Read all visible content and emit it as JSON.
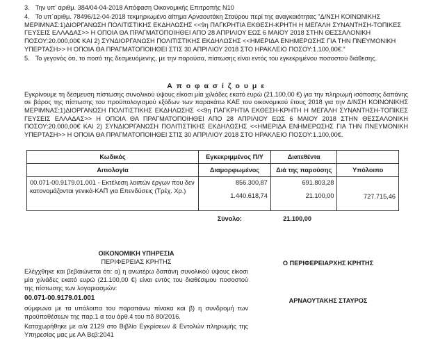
{
  "preamble_items": [
    {
      "num": "3.",
      "text": "Την υπ' αριθμ. 384/04-04-2018 Απόφαση Οικονομικής Επιτροπής Ν10"
    },
    {
      "num": "4.",
      "text": "Το υπ΄αριθμ. 78496/12-04-2018 τεκμηριωμένο αίτημα Αρναουτάκη Σταύρου περί της αναγκαιότητας \"Δ/ΝΣΗ ΚΟΙΝΩΝΙΚΗΣ ΜΕΡΙΜΝΑΣ:1)ΔΙΟΡΓΑΝΩΣΗ ΠΟΛΙΤΙΣΤΙΚΗΣ ΕΚΔΗΛΩΣΗΣ <<9η ΠΑΓΚΡΗΤΙΑ ΕΚΘΕΣΗ-ΚΡΗΤΗ Η ΜΕΓΑΛΗ ΣΥΝΑΝΤΗΣΗ-ΤΟΠΙΚΕΣ ΓΕΥΣΕΙΣ ΕΛΛΑΔΑΣ>> Η ΟΠΟΙΑ ΘΑ ΠΡΑΓΜΑΤΟΠΟΙΗΘΕΙ ΑΠΟ 28 ΑΠΡΙΛΙΟΥ ΕΩΣ 6 ΜΑΙΟΥ 2018 ΣΤΗΝ ΘΕΣΣΑΛΟΝΙΚΗ ΠΟΣΟΥ:20.000,00€ ΚΑΙ 2) ΣΥΝΔΙΟΡΓΑΝΩΣΗ ΠΟΛΙΤΙΣΤΙΚΗΣ ΕΚΔΗΛΩΣΗΣ <<ΗΜΕΡΙΔΑ ΕΝΗΜΕΡΩΣΗΣ ΓΙΑ ΤΗΝ ΠΝΕΥΜΟΝΙΚΗ ΥΠΕΡΤΑΣΗ>> Η ΟΠΟΙΑ ΘΑ ΠΡΑΓΜΑΤΟΠΟΙΗΘΕΙ ΣΤΙΣ 30 ΑΠΡΙΛΙΟΥ 2018 ΣΤΟ ΗΡΑΚΛΕΙΟ ΠΟΣΟΥ:1.100,00€.\""
    },
    {
      "num": "5.",
      "text": "Το γεγονός ότι, το ποσό της δεσμευόμενης, με την παρούσα, πίστωσης είναι εντός του εγκεκριμένου ποσοστού διάθεσης."
    }
  ],
  "decision": {
    "heading": "Α π ο φ α σ ί ζ ο υ μ ε",
    "paragraph": "Εγκρίνουμε τη δέσμευση πίστωσης συνολικού ύψους είκοσι μία χιλιάδες εκατό ευρώ (21.100,00 €) για την πληρωμή ισόποσης δαπάνης σε βάρος της πίστωσης του προϋπολογισμού εξόδων των παρακάτω ΚΑΕ του οικονομικού έτους 2018 για την Δ/ΝΣΗ ΚΟΙΝΩΝΙΚΗΣ ΜΕΡΙΜΝΑΣ:1)ΔΙΟΡΓΑΝΩΣΗ ΠΟΛΙΤΙΣΤΙΚΗΣ ΕΚΔΗΛΩΣΗΣ <<9η ΠΑΓΚΡΗΤΙΑ ΕΚΘΕΣΗ-ΚΡΗΤΗ Η ΜΕΓΑΛΗ ΣΥΝΑΝΤΗΣΗ-ΤΟΠΙΚΕΣ ΓΕΥΣΕΙΣ ΕΛΛΑΔΑΣ>> Η ΟΠΟΙΑ ΘΑ ΠΡΑΓΜΑΤΟΠΟΙΗΘΕΙ ΑΠΟ 28 ΑΠΡΙΛΙΟΥ ΕΩΣ 6 ΜΑΙΟΥ 2018 ΣΤΗΝ ΘΕΣΣΑΛΟΝΙΚΗ ΠΟΣΟΥ:20.000,00€ ΚΑΙ 2) ΣΥΝΔΙΟΡΓΑΝΩΣΗ ΠΟΛΙΤΙΣΤΙΚΗΣ ΕΚΔΗΛΩΣΗΣ <<ΗΜΕΡΙΔΑ ΕΝΗΜΕΡΩΣΗΣ ΓΙΑ ΤΗΝ ΠΝΕΥΜΟΝΙΚΗ ΥΠΕΡΤΑΣΗ>> Η ΟΠΟΙΑ ΘΑ ΠΡΑΓΜΑΤΟΠΟΙΗΘΕΙ ΣΤΙΣ 30 ΑΠΡΙΛΙΟΥ 2018 ΣΤΟ ΗΡΑΚΛΕΙΟ ΠΟΣΟΥ:1.100,00€."
  },
  "table": {
    "header_row1": [
      "Κωδικός",
      "Εγκεκριμμένος Π/Υ",
      "Διατεθέντα",
      ""
    ],
    "header_row2": [
      "Αιτιολογία",
      "Διαμορφωμένος",
      "Διά της παρούσης",
      "Υπόλοιπο"
    ],
    "row": {
      "code_description": "00.071-00.9179.01.001 - Εκτέλεση λοιπών έργων που δεν κατονομάζονται γενικά-ΚΑΠ  για Επενδύσεις (Τρέχ. Χρ.)",
      "approved_line1": "856.300,87",
      "approved_line2": "1.440.618,74",
      "allocated_line1": "691.803,28",
      "allocated_line2": "21.100,00",
      "balance": "727.715,46"
    },
    "total_label": "Σύνολο:",
    "total_value": "21.100,00"
  },
  "footer": {
    "left": {
      "title": "ΟΙΚΟΝΟΜΙΚΗ ΥΠΗΡΕΣΙΑ",
      "subtitle": "ΠΕΡΙΦΕΡΕΙΑΣ ΚΡΗΤΗΣ",
      "verification_text": "Ελέγχθηκε και βεβαιώνεται ότι: α)  η ανωτέρω δαπάνη συνολικού ύψους είκοσι μία  χιλιάδες εκατό ευρώ  (21.100,00 €) είναι εντός του διαθέσιμου ποσοστού της πίστωσης των λογαριασμών:",
      "account_code": "00.071-00.9179.01.001",
      "conditions_text": "σύμφωνα με τα υπόλοιπα του παραπάνω πίνακα και  β) η συνδρομή των προϋποθέσεων της παρ.1 α του άρθ.4 του πδ 80/2016.",
      "registration_text": "Καταχωρήθηκε με α/α 2129 στο Βιβλίο Εγκρίσεων & Εντολών πληρωμής της Υπηρεσίας μας  με ΑΑ Βεβ:2041"
    },
    "right": {
      "signer_title": "Ο ΠΕΡΙΦΕΡΕΙΑΡΧΗΣ ΚΡΗΤΗΣ",
      "signer_name": "ΑΡΝΑΟΥΤΑΚΗΣ ΣΤΑΥΡΟΣ"
    }
  }
}
